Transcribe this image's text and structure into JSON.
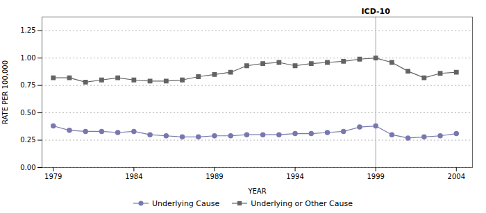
{
  "chart_data": {
    "type": "line",
    "xlabel": "YEAR",
    "ylabel": "RATE PER 100,000",
    "x": [
      1979,
      1980,
      1981,
      1982,
      1983,
      1984,
      1985,
      1986,
      1987,
      1988,
      1989,
      1990,
      1991,
      1992,
      1993,
      1994,
      1995,
      1996,
      1997,
      1998,
      1999,
      2000,
      2001,
      2002,
      2003,
      2004
    ],
    "series": [
      {
        "name": "Underlying Cause",
        "color": "#7878b0",
        "marker": "circle",
        "values": [
          0.38,
          0.34,
          0.33,
          0.33,
          0.32,
          0.33,
          0.3,
          0.29,
          0.28,
          0.28,
          0.29,
          0.29,
          0.3,
          0.3,
          0.3,
          0.31,
          0.31,
          0.32,
          0.33,
          0.37,
          0.38,
          0.3,
          0.27,
          0.28,
          0.29,
          0.31
        ]
      },
      {
        "name": "Underlying or Other Cause",
        "color": "#636363",
        "marker": "square",
        "values": [
          0.82,
          0.82,
          0.78,
          0.8,
          0.82,
          0.8,
          0.79,
          0.79,
          0.8,
          0.83,
          0.85,
          0.87,
          0.93,
          0.95,
          0.96,
          0.93,
          0.95,
          0.96,
          0.97,
          0.99,
          1.0,
          0.96,
          0.88,
          0.82,
          0.86,
          0.87
        ]
      }
    ],
    "xlim": [
      1978.3,
      2005.0
    ],
    "xticks": [
      1979,
      1984,
      1989,
      1994,
      1999,
      2004
    ],
    "ylim": [
      0.0,
      1.375
    ],
    "yticks": [
      {
        "value": 0,
        "label": "0.00"
      },
      0.25,
      {
        "value": 0.5,
        "label": "0.50"
      },
      0.75,
      {
        "value": 1,
        "label": "1.00"
      },
      1.25
    ],
    "grid": true,
    "legend": "bottom",
    "annotations": [
      {
        "x": 1999,
        "text": "ICD-10",
        "color": "#b0b0cc"
      }
    ]
  }
}
